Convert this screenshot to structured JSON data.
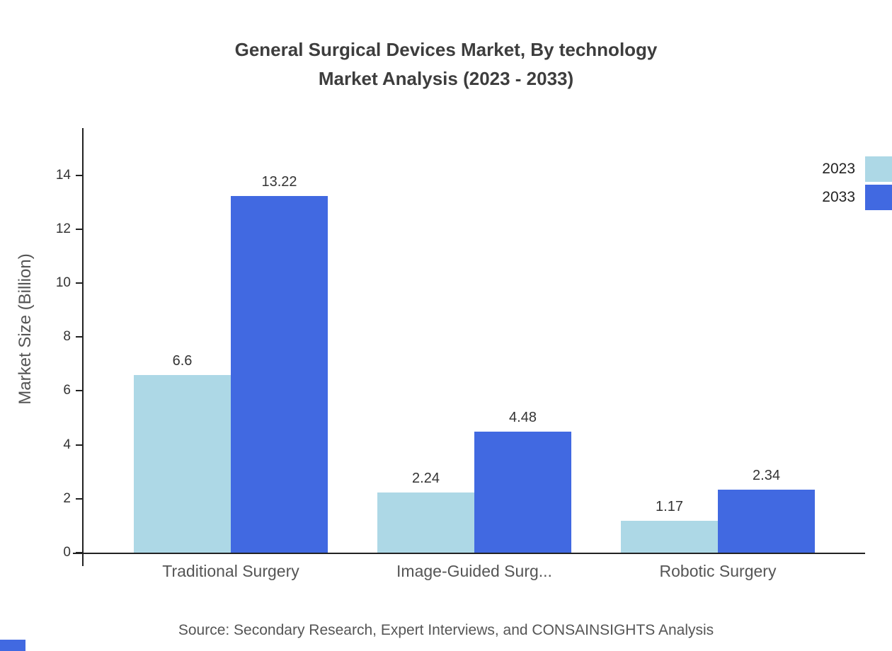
{
  "title": {
    "line1": "General Surgical Devices Market, By technology",
    "line2": "Market Analysis (2023 - 2033)"
  },
  "source": "Source: Secondary Research, Expert Interviews, and CONSAINSIGHTS Analysis",
  "chart_data": {
    "type": "bar",
    "categories": [
      "Traditional Surgery",
      "Image-Guided Surg...",
      "Robotic Surgery"
    ],
    "series": [
      {
        "name": "2023",
        "color": "#add8e6",
        "values": [
          6.6,
          2.24,
          1.17
        ],
        "labels": [
          "6.6",
          "2.24",
          "1.17"
        ]
      },
      {
        "name": "2033",
        "color": "#4169e1",
        "values": [
          13.22,
          4.48,
          2.34
        ],
        "labels": [
          "13.22",
          "4.48",
          "2.34"
        ]
      }
    ],
    "ylabel": "Market Size (Billion)",
    "yticks": [
      0,
      2,
      4,
      6,
      8,
      10,
      12,
      14
    ],
    "ylim": [
      0,
      15.75
    ],
    "grid": false,
    "legend_position": "top-right"
  }
}
